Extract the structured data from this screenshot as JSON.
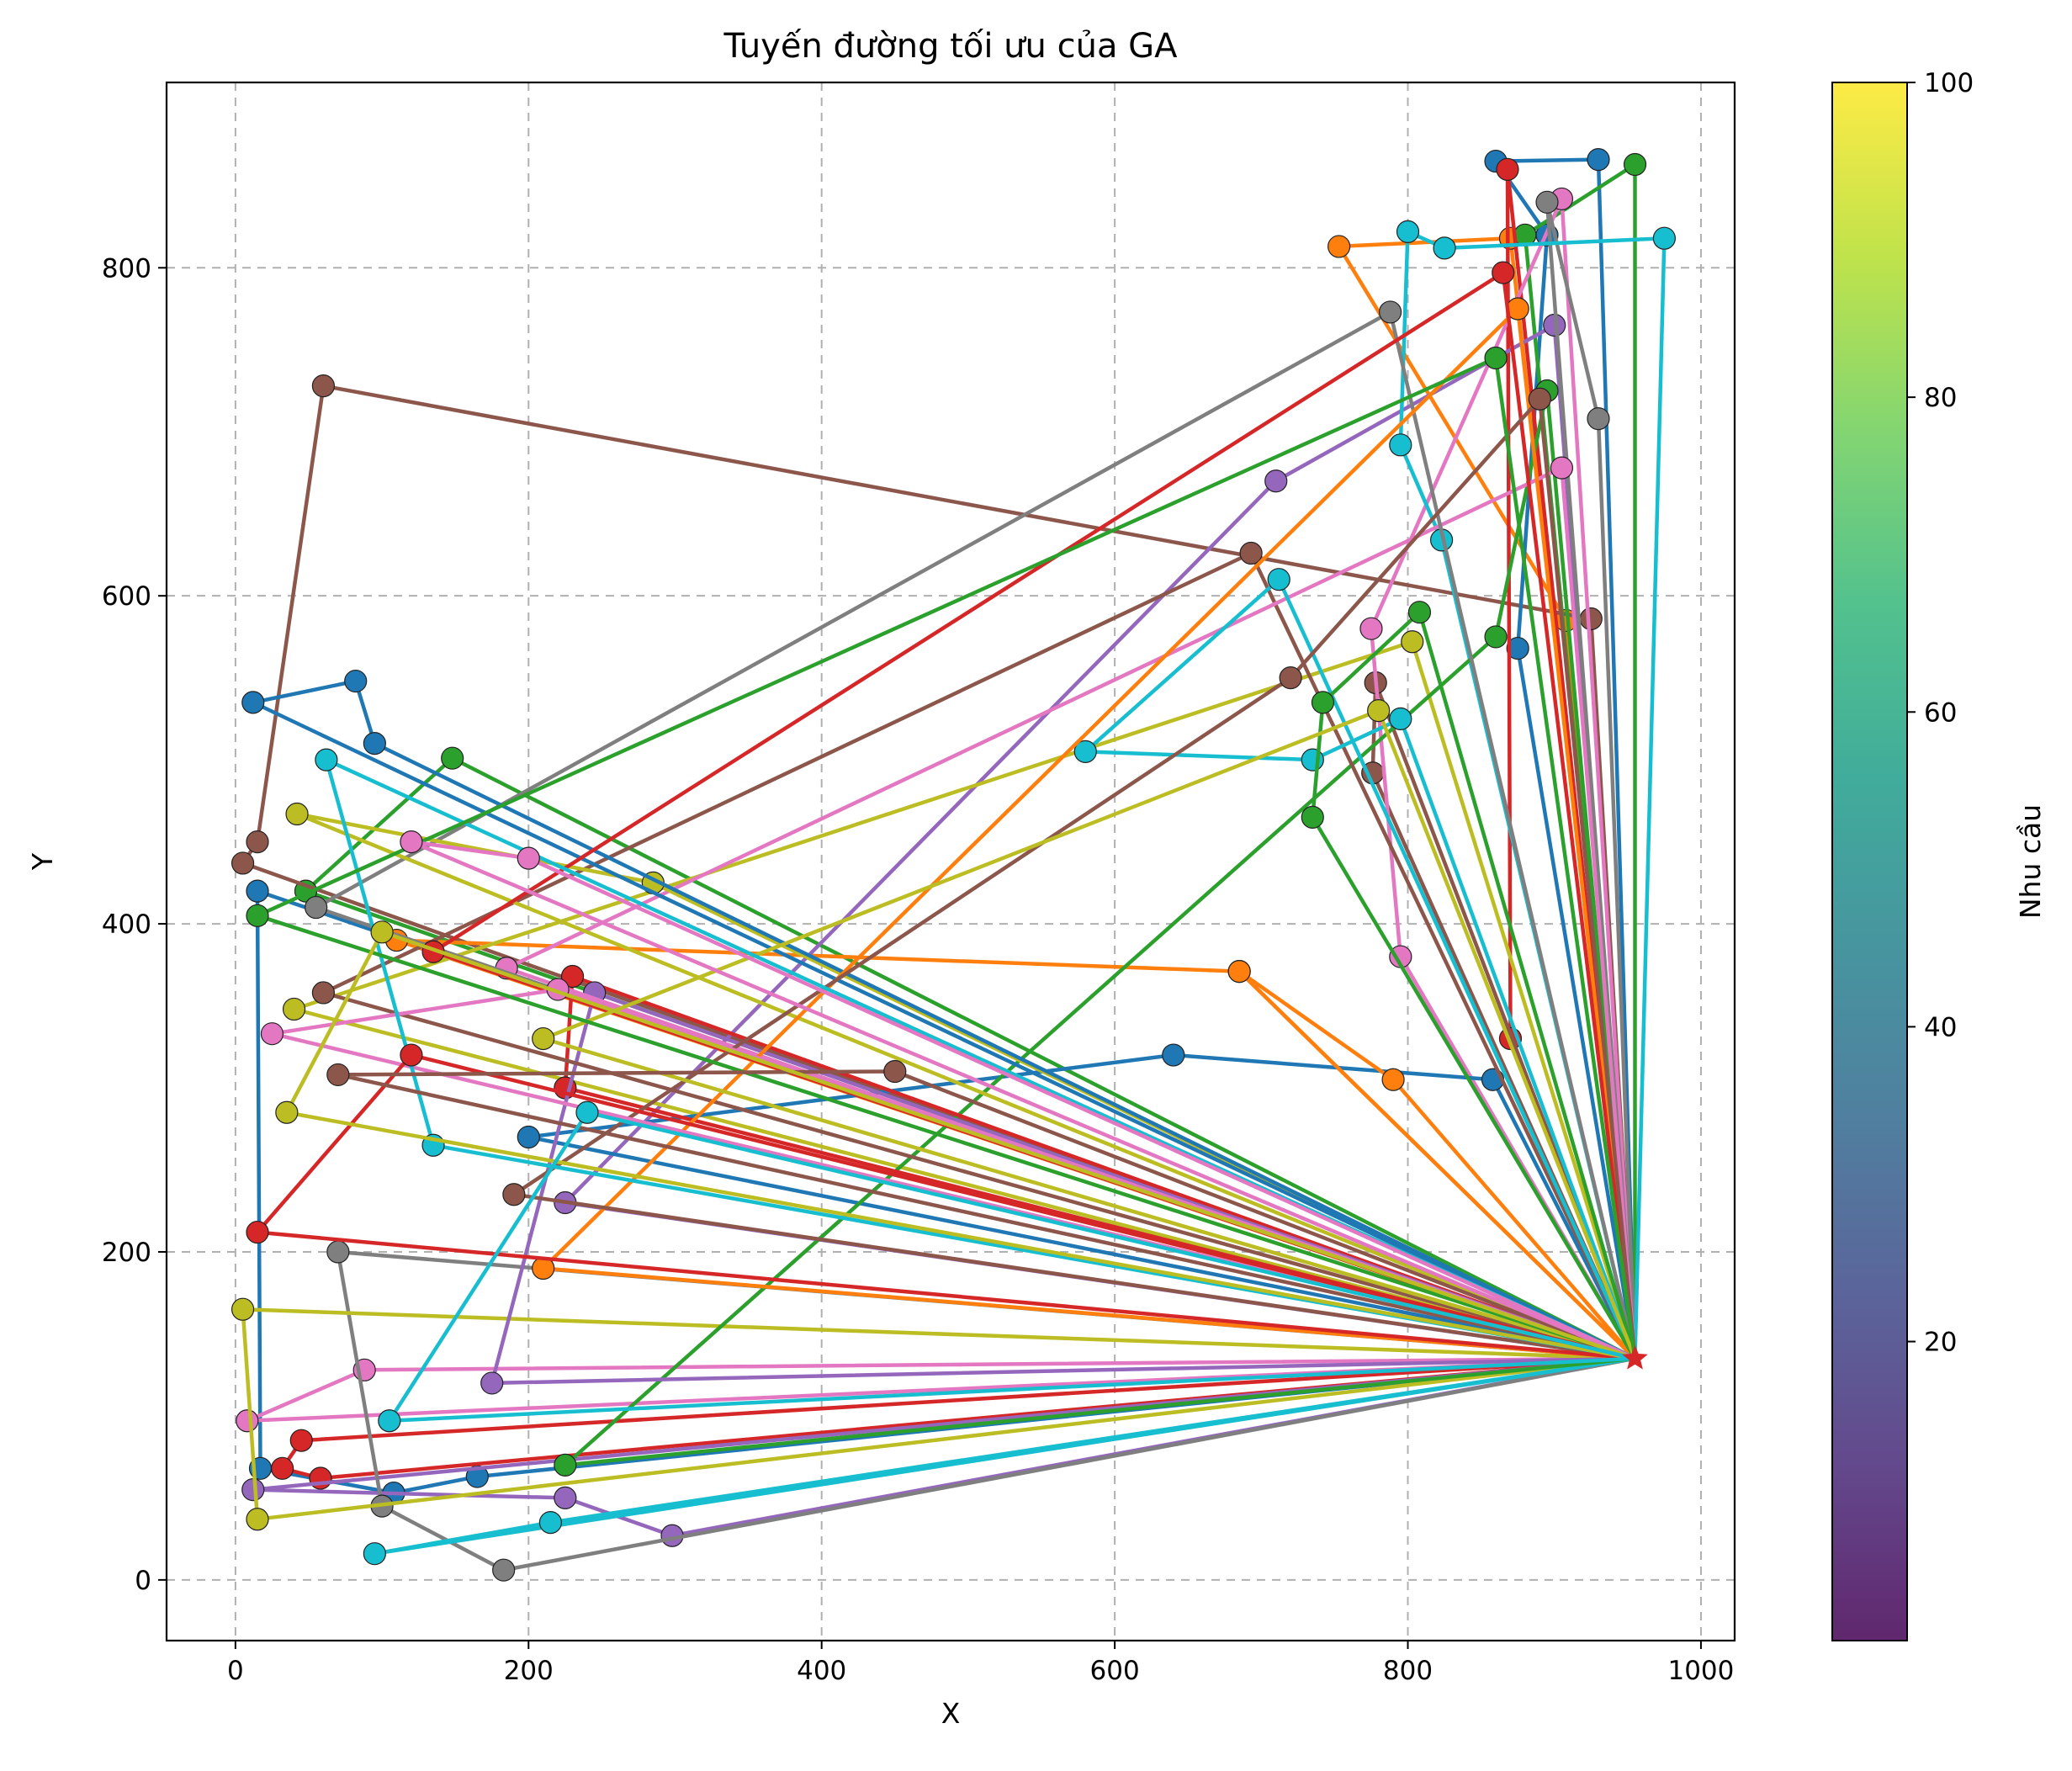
{
  "chart_data": {
    "type": "line",
    "title": "Tuyến đường tối ưu của GA",
    "xlabel": "X",
    "ylabel": "Y",
    "xlim": [
      -47,
      1023
    ],
    "ylim": [
      -37,
      913
    ],
    "xticks": [
      0,
      200,
      400,
      600,
      800,
      1000
    ],
    "yticks": [
      0,
      200,
      400,
      600,
      800
    ],
    "grid": true,
    "depot": {
      "x": 955,
      "y": 135,
      "marker": "star",
      "color": "#d62728"
    },
    "colorbar": {
      "label": "Nhu cầu",
      "range": [
        1,
        100
      ],
      "ticks": [
        20,
        40,
        60,
        80,
        100
      ],
      "colormap": [
        "#440154",
        "#482878",
        "#3e4989",
        "#31688e",
        "#26828e",
        "#1f9e89",
        "#35b779",
        "#6ece58",
        "#b5de2b",
        "#fde725"
      ]
    },
    "palette": [
      "#1f77b4",
      "#ff7f0e",
      "#2ca02c",
      "#d62728",
      "#9467bd",
      "#8c564b",
      "#e377c2",
      "#7f7f7f",
      "#bcbd22",
      "#17becf"
    ],
    "routes": [
      {
        "color": "#1f77b4",
        "points": [
          [
            955,
            135
          ],
          [
            15,
            420
          ],
          [
            17,
            68
          ],
          [
            108,
            53
          ],
          [
            165,
            63
          ],
          [
            955,
            135
          ]
        ]
      },
      {
        "color": "#ff7f0e",
        "points": [
          [
            955,
            135
          ],
          [
            908,
            585
          ],
          [
            753,
            813
          ],
          [
            870,
            818
          ],
          [
            955,
            135
          ]
        ]
      },
      {
        "color": "#2ca02c",
        "points": [
          [
            955,
            135
          ],
          [
            48,
            420
          ],
          [
            148,
            501
          ],
          [
            955,
            135
          ]
        ]
      },
      {
        "color": "#d62728",
        "points": [
          [
            955,
            135
          ],
          [
            58,
            62
          ],
          [
            32,
            68
          ],
          [
            45,
            85
          ],
          [
            955,
            135
          ]
        ]
      },
      {
        "color": "#9467bd",
        "points": [
          [
            955,
            135
          ],
          [
            298,
            27
          ],
          [
            225,
            50
          ],
          [
            12,
            55
          ],
          [
            955,
            135
          ]
        ]
      },
      {
        "color": "#8c564b",
        "points": [
          [
            955,
            135
          ],
          [
            5,
            437
          ],
          [
            15,
            450
          ],
          [
            60,
            728
          ],
          [
            925,
            586
          ],
          [
            955,
            135
          ]
        ]
      },
      {
        "color": "#e377c2",
        "points": [
          [
            955,
            135
          ],
          [
            8,
            97
          ],
          [
            88,
            128
          ],
          [
            955,
            135
          ]
        ]
      },
      {
        "color": "#7f7f7f",
        "points": [
          [
            955,
            135
          ],
          [
            183,
            6
          ],
          [
            100,
            45
          ],
          [
            70,
            200
          ],
          [
            955,
            135
          ]
        ]
      },
      {
        "color": "#bcbd22",
        "points": [
          [
            955,
            135
          ],
          [
            15,
            37
          ],
          [
            5,
            165
          ],
          [
            955,
            135
          ]
        ]
      },
      {
        "color": "#17becf",
        "points": [
          [
            955,
            135
          ],
          [
            95,
            16
          ],
          [
            215,
            35
          ],
          [
            955,
            135
          ]
        ]
      },
      {
        "color": "#1f77b4",
        "points": [
          [
            955,
            135
          ],
          [
            875,
            568
          ],
          [
            895,
            820
          ],
          [
            860,
            865
          ],
          [
            930,
            866
          ],
          [
            955,
            135
          ]
        ]
      },
      {
        "color": "#ff7f0e",
        "points": [
          [
            955,
            135
          ],
          [
            685,
            371
          ],
          [
            110,
            390
          ],
          [
            955,
            135
          ]
        ]
      },
      {
        "color": "#2ca02c",
        "points": [
          [
            955,
            135
          ],
          [
            955,
            863
          ],
          [
            880,
            820
          ],
          [
            955,
            135
          ]
        ]
      },
      {
        "color": "#d62728",
        "points": [
          [
            955,
            135
          ],
          [
            868,
            860
          ],
          [
            870,
            330
          ],
          [
            955,
            135
          ]
        ]
      },
      {
        "color": "#9467bd",
        "points": [
          [
            955,
            135
          ],
          [
            900,
            765
          ],
          [
            710,
            670
          ],
          [
            225,
            230
          ],
          [
            955,
            135
          ]
        ]
      },
      {
        "color": "#8c564b",
        "points": [
          [
            955,
            135
          ],
          [
            776,
            492
          ],
          [
            778,
            547
          ],
          [
            955,
            135
          ]
        ]
      },
      {
        "color": "#e377c2",
        "points": [
          [
            955,
            135
          ],
          [
            795,
            380
          ],
          [
            775,
            580
          ],
          [
            905,
            842
          ],
          [
            955,
            135
          ]
        ]
      },
      {
        "color": "#7f7f7f",
        "points": [
          [
            955,
            135
          ],
          [
            930,
            708
          ],
          [
            895,
            840
          ],
          [
            955,
            135
          ]
        ]
      },
      {
        "color": "#bcbd22",
        "points": [
          [
            955,
            135
          ],
          [
            803,
            572
          ],
          [
            40,
            348
          ],
          [
            955,
            135
          ]
        ]
      },
      {
        "color": "#17becf",
        "points": [
          [
            955,
            135
          ],
          [
            975,
            818
          ],
          [
            825,
            812
          ],
          [
            800,
            822
          ],
          [
            795,
            692
          ],
          [
            823,
            634
          ],
          [
            955,
            135
          ]
        ]
      },
      {
        "color": "#1f77b4",
        "points": [
          [
            955,
            135
          ],
          [
            858,
            305
          ],
          [
            640,
            320
          ],
          [
            200,
            270
          ],
          [
            955,
            135
          ]
        ]
      },
      {
        "color": "#ff7f0e",
        "points": [
          [
            955,
            135
          ],
          [
            790,
            305
          ],
          [
            685,
            371
          ],
          [
            955,
            135
          ]
        ]
      },
      {
        "color": "#2ca02c",
        "points": [
          [
            955,
            135
          ],
          [
            895,
            725
          ],
          [
            860,
            575
          ],
          [
            225,
            70
          ],
          [
            955,
            135
          ]
        ]
      },
      {
        "color": "#d62728",
        "points": [
          [
            955,
            135
          ],
          [
            225,
            300
          ],
          [
            230,
            368
          ],
          [
            955,
            135
          ]
        ]
      },
      {
        "color": "#9467bd",
        "points": [
          [
            955,
            135
          ],
          [
            245,
            358
          ],
          [
            175,
            120
          ],
          [
            955,
            135
          ]
        ]
      },
      {
        "color": "#8c564b",
        "points": [
          [
            955,
            135
          ],
          [
            693,
            626
          ],
          [
            60,
            358
          ],
          [
            955,
            135
          ]
        ]
      },
      {
        "color": "#e377c2",
        "points": [
          [
            955,
            135
          ],
          [
            905,
            678
          ],
          [
            185,
            373
          ],
          [
            955,
            135
          ]
        ]
      },
      {
        "color": "#7f7f7f",
        "points": [
          [
            955,
            135
          ],
          [
            788,
            773
          ],
          [
            55,
            410
          ],
          [
            955,
            135
          ]
        ]
      },
      {
        "color": "#bcbd22",
        "points": [
          [
            955,
            135
          ],
          [
            285,
            425
          ],
          [
            42,
            467
          ],
          [
            955,
            135
          ]
        ]
      },
      {
        "color": "#17becf",
        "points": [
          [
            955,
            135
          ],
          [
            712,
            610
          ],
          [
            580,
            505
          ],
          [
            735,
            500
          ],
          [
            795,
            525
          ],
          [
            955,
            135
          ]
        ]
      },
      {
        "color": "#1f77b4",
        "points": [
          [
            955,
            135
          ],
          [
            12,
            535
          ],
          [
            82,
            548
          ],
          [
            95,
            510
          ],
          [
            955,
            135
          ]
        ]
      },
      {
        "color": "#ff7f0e",
        "points": [
          [
            955,
            135
          ],
          [
            875,
            775
          ],
          [
            210,
            190
          ],
          [
            955,
            135
          ]
        ]
      },
      {
        "color": "#2ca02c",
        "points": [
          [
            955,
            135
          ],
          [
            808,
            590
          ],
          [
            742,
            535
          ],
          [
            735,
            465
          ],
          [
            955,
            135
          ]
        ]
      },
      {
        "color": "#d62728",
        "points": [
          [
            955,
            135
          ],
          [
            865,
            797
          ],
          [
            135,
            383
          ],
          [
            955,
            135
          ]
        ]
      },
      {
        "color": "#8c564b",
        "points": [
          [
            955,
            135
          ],
          [
            890,
            720
          ],
          [
            720,
            550
          ],
          [
            190,
            235
          ],
          [
            955,
            135
          ]
        ]
      },
      {
        "color": "#e377c2",
        "points": [
          [
            955,
            135
          ],
          [
            220,
            360
          ],
          [
            25,
            333
          ],
          [
            955,
            135
          ]
        ]
      },
      {
        "color": "#bcbd22",
        "points": [
          [
            955,
            135
          ],
          [
            780,
            530
          ],
          [
            210,
            330
          ],
          [
            955,
            135
          ]
        ]
      },
      {
        "color": "#17becf",
        "points": [
          [
            955,
            135
          ],
          [
            62,
            500
          ],
          [
            135,
            265
          ],
          [
            955,
            135
          ]
        ]
      },
      {
        "color": "#2ca02c",
        "points": [
          [
            955,
            135
          ],
          [
            860,
            745
          ],
          [
            15,
            405
          ],
          [
            955,
            135
          ]
        ]
      },
      {
        "color": "#d62728",
        "points": [
          [
            955,
            135
          ],
          [
            120,
            320
          ],
          [
            15,
            212
          ],
          [
            955,
            135
          ]
        ]
      },
      {
        "color": "#8c564b",
        "points": [
          [
            955,
            135
          ],
          [
            450,
            310
          ],
          [
            70,
            308
          ],
          [
            955,
            135
          ]
        ]
      },
      {
        "color": "#e377c2",
        "points": [
          [
            955,
            135
          ],
          [
            200,
            440
          ],
          [
            120,
            450
          ],
          [
            955,
            135
          ]
        ]
      },
      {
        "color": "#bcbd22",
        "points": [
          [
            955,
            135
          ],
          [
            35,
            285
          ],
          [
            100,
            395
          ],
          [
            955,
            135
          ]
        ]
      },
      {
        "color": "#17becf",
        "points": [
          [
            955,
            135
          ],
          [
            240,
            285
          ],
          [
            105,
            97
          ],
          [
            955,
            135
          ]
        ]
      }
    ]
  }
}
